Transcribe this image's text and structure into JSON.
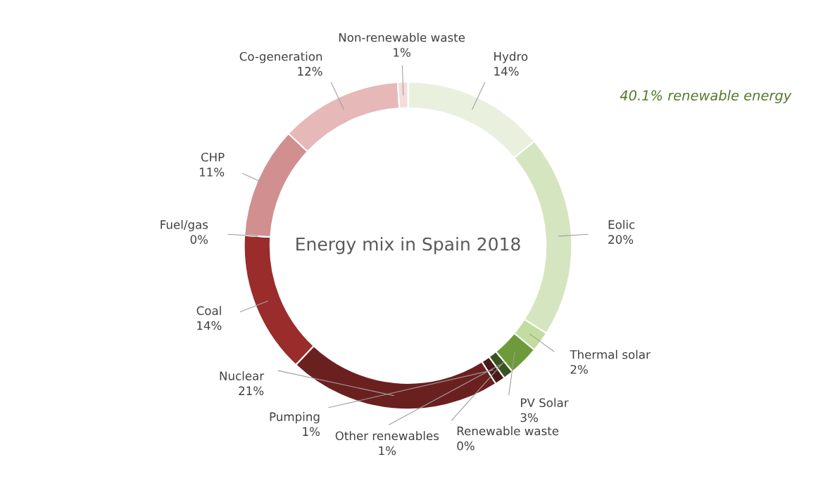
{
  "chart_data": {
    "type": "donut",
    "title": "Energy mix in Spain 2018",
    "categories": [
      "Hydro",
      "Eolic",
      "Thermal solar",
      "PV Solar",
      "Renewable waste",
      "Other renewables",
      "Pumping",
      "Nuclear",
      "Coal",
      "Fuel/gas",
      "CHP",
      "Co-generation",
      "Non-renewable waste"
    ],
    "values": [
      14,
      20,
      2,
      3,
      0,
      1,
      1,
      21,
      14,
      0,
      11,
      12,
      1
    ],
    "value_labels": [
      "14%",
      "20%",
      "2%",
      "3%",
      "0%",
      "1%",
      "1%",
      "21%",
      "14%",
      "0%",
      "11%",
      "12%",
      "1%"
    ],
    "colors": [
      "#e9f1de",
      "#d5e5bf",
      "#c3dca0",
      "#6e9a3a",
      "#4d7a2a",
      "#38551f",
      "#4a1a1a",
      "#6b2020",
      "#9a2c2c",
      "#7a2020",
      "#d28f8f",
      "#e6b8b8",
      "#f5dcdc"
    ],
    "annotations": [
      "40.1% renewable energy"
    ],
    "legend": false
  }
}
